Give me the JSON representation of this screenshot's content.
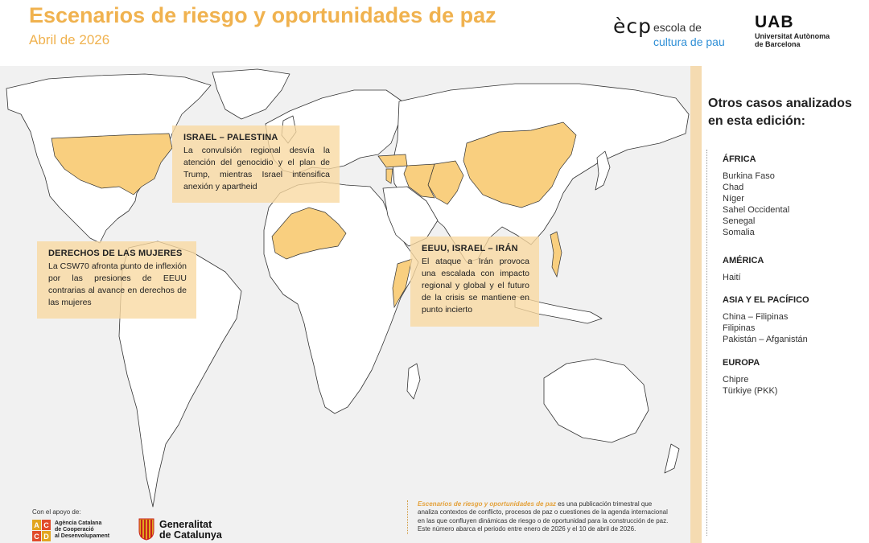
{
  "header": {
    "title": "Escenarios de riesgo y oportunidades de paz",
    "subtitle": "Abril de 2026",
    "ecp_logo": {
      "mark": "ècp",
      "line1": "escola de",
      "line2": "cultura de pau"
    },
    "uab_logo": {
      "mark": "UAB",
      "line1": "Universitat Autònoma",
      "line2": "de Barcelona"
    }
  },
  "colors": {
    "accent": "#f0b24f",
    "highlight_country": "#f9cf7f",
    "callout_bg": "#f9d8a0",
    "map_bg": "#f1f1f1",
    "sidebar_band": "#f5dbb1",
    "logo_blue": "#2f8fd6"
  },
  "callouts": [
    {
      "id": "israel",
      "title": "ISRAEL – PALESTINA",
      "text": "La convulsión regional desvía la atención del genocidio y el plan de Trump, mientras Israel intensifica anexión y apartheid"
    },
    {
      "id": "women",
      "title": "DERECHOS DE LAS MUJERES",
      "text": "La CSW70 afronta punto de inflexión por las presiones de EEUU contrarias al avance en derechos de las mujeres"
    },
    {
      "id": "iran",
      "title": "EEUU, ISRAEL – IRÁN",
      "text": "El ataque a Irán provoca una escalada con impacto regional y global y el futuro de la crisis se mantiene en punto incierto"
    }
  ],
  "sidebar": {
    "heading_line1": "Otros casos analizados",
    "heading_line2": "en esta edición:",
    "regions": [
      {
        "name": "ÁFRICA",
        "items": [
          "Burkina Faso",
          "Chad",
          "Níger",
          "Sahel Occidental",
          "Senegal",
          "Somalia"
        ]
      },
      {
        "name": "AMÉRICA",
        "items": [
          "Haití"
        ]
      },
      {
        "name": "ASIA Y EL PACÍFICO",
        "items": [
          "China – Filipinas",
          "Filipinas",
          "Pakistán – Afganistán"
        ]
      },
      {
        "name": "EUROPA",
        "items": [
          "Chipre",
          "Türkiye (PKK)"
        ]
      }
    ]
  },
  "footer": {
    "support_label": "Con el apoyo de:",
    "acd_logo": {
      "letters": [
        "A",
        "C",
        "C",
        "D"
      ],
      "line1": "Agència Catalana",
      "line2": "de Cooperació",
      "line3": "al Desenvolupament"
    },
    "gencat_logo": {
      "line1": "Generalitat",
      "line2": "de Catalunya"
    },
    "note_publication": "Escenarios de riesgo y oportunidades de paz",
    "note_text": " es una publicación trimestral que analiza contextos de conflicto, procesos de paz o cuestiones de la agenda internacional en las que confluyen dinámicas de riesgo o de oportunidad para la construcción de paz. Este número abarca el periodo entre enero de 2026 y el 10 de abril de 2026."
  },
  "map": {
    "highlighted_countries": [
      "United States",
      "Israel",
      "Palestine",
      "Lebanon",
      "Syria",
      "Iraq",
      "Iran",
      "Cyprus",
      "Türkiye",
      "Afghanistan",
      "Pakistan",
      "China",
      "Philippines",
      "Senegal",
      "Mali",
      "Burkina Faso",
      "Niger",
      "Chad",
      "Somalia",
      "Haiti"
    ]
  }
}
